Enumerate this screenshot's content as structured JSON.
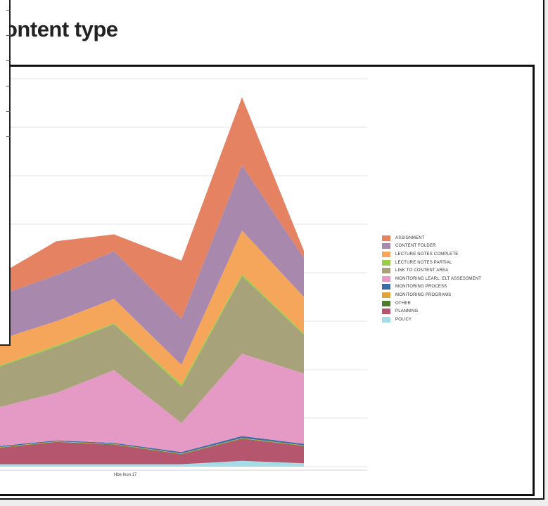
{
  "title": "ontent type",
  "colors": {
    "frame": "#111111",
    "grid": "#e6e6e6"
  },
  "chart_data": {
    "type": "area",
    "stacked": true,
    "title": "ontent type",
    "x": [
      1,
      2,
      3,
      4,
      5,
      6
    ],
    "x_tick_label": "Hbe Ikon 17",
    "ylim": [
      0,
      8
    ],
    "grid": true,
    "legend_position": "right",
    "series": [
      {
        "name": "POLICY",
        "color": "#a6dbe8",
        "values": [
          0.05,
          0.05,
          0.05,
          0.05,
          0.12,
          0.07
        ]
      },
      {
        "name": "PLANNING",
        "color": "#b5566e",
        "values": [
          0.3,
          0.45,
          0.4,
          0.2,
          0.45,
          0.35
        ]
      },
      {
        "name": "OTHER",
        "color": "#4e7a2d",
        "values": [
          0.01,
          0.01,
          0.01,
          0.01,
          0.01,
          0.01
        ]
      },
      {
        "name": "MONITORING PROGRAMS",
        "color": "#e0a33a",
        "values": [
          0.01,
          0.01,
          0.01,
          0.01,
          0.01,
          0.01
        ]
      },
      {
        "name": "MONITORING PROCESS",
        "color": "#3b6ea8",
        "values": [
          0.02,
          0.02,
          0.02,
          0.03,
          0.04,
          0.03
        ]
      },
      {
        "name": "MONITORING LEARL. ELT ASSESSMENT",
        "color": "#e49ac4",
        "values": [
          0.75,
          0.98,
          1.5,
          0.6,
          1.7,
          1.45
        ]
      },
      {
        "name": "LINK TO CONTENT AREA",
        "color": "#a8a27a",
        "values": [
          0.8,
          0.95,
          0.95,
          0.75,
          1.6,
          0.8
        ]
      },
      {
        "name": "LECTURE NOTES PARTIAL",
        "color": "#9acd49",
        "values": [
          0.02,
          0.03,
          0.02,
          0.05,
          0.04,
          0.03
        ]
      },
      {
        "name": "LECTURE NOTES COMPLETE",
        "color": "#f6a65a",
        "values": [
          0.55,
          0.5,
          0.5,
          0.4,
          0.9,
          0.75
        ]
      },
      {
        "name": "CONTENT FOLDER",
        "color": "#a889ad",
        "values": [
          0.9,
          0.95,
          0.98,
          0.95,
          1.35,
          0.8
        ]
      },
      {
        "name": "ASSIGNMENT",
        "color": "#e58262",
        "values": [
          0.35,
          0.7,
          0.35,
          1.2,
          1.4,
          0.15
        ]
      }
    ]
  }
}
